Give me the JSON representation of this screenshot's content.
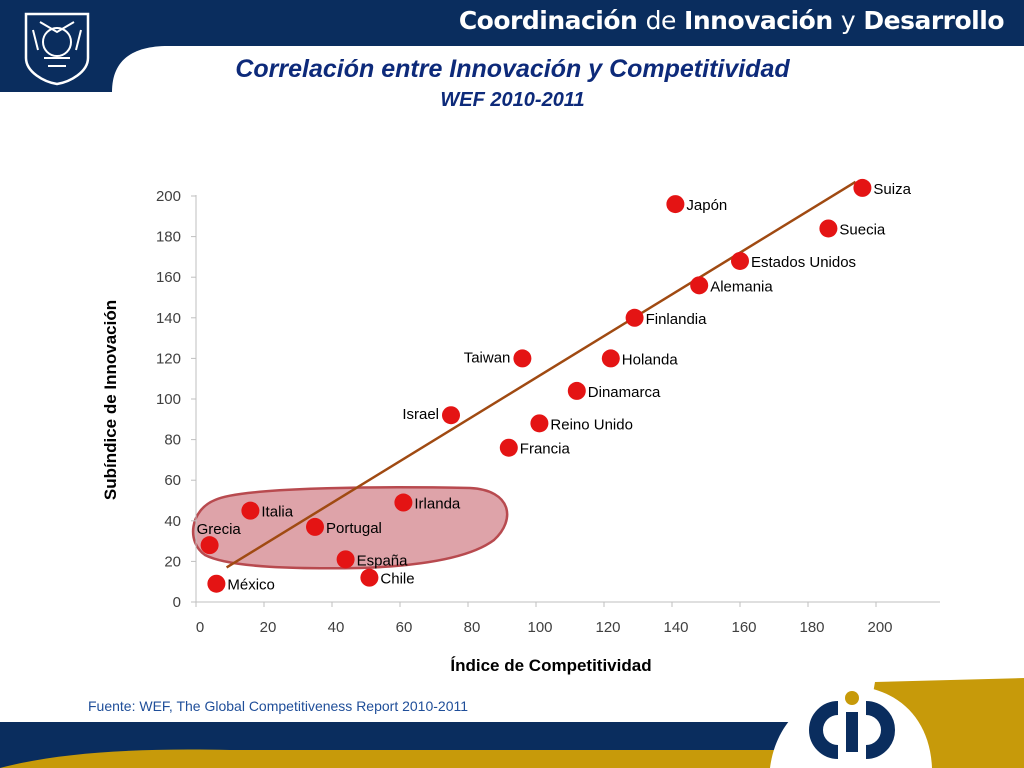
{
  "header": {
    "org_part1": "Coordinación",
    "org_part2": "de",
    "org_part3": "Innovación",
    "org_part4": "y",
    "org_part5": "Desarrollo",
    "logo_text": "cid"
  },
  "slide": {
    "title": "Correlación entre Innovación y Competitividad",
    "subtitle": "WEF 2010-2011"
  },
  "source": "Fuente: WEF, The Global Competitiveness Report 2010-2011",
  "colors": {
    "navy": "#0a2d5e",
    "gold": "#c79a0a",
    "point": "#e41414",
    "trend": "#a04a12",
    "highlight_fill": "#d8939a",
    "highlight_stroke": "#b84a4f",
    "title": "#0d2a7a"
  },
  "chart_data": {
    "type": "scatter",
    "xlabel": "Índice de Competitividad",
    "ylabel": "Subíndice de Innovación",
    "xlim": [
      0,
      200
    ],
    "ylim": [
      0,
      200
    ],
    "xticks": [
      0,
      20,
      40,
      60,
      80,
      100,
      120,
      140,
      160,
      180,
      200
    ],
    "yticks": [
      0,
      20,
      40,
      60,
      80,
      100,
      120,
      140,
      160,
      180,
      200
    ],
    "grid": false,
    "points": [
      {
        "label": "Suiza",
        "x": 196,
        "y": 204,
        "label_pos": "right"
      },
      {
        "label": "Japón",
        "x": 141,
        "y": 196,
        "label_pos": "right"
      },
      {
        "label": "Suecia",
        "x": 186,
        "y": 184,
        "label_pos": "right"
      },
      {
        "label": "Estados Unidos",
        "x": 160,
        "y": 168,
        "label_pos": "right"
      },
      {
        "label": "Alemania",
        "x": 148,
        "y": 156,
        "label_pos": "right"
      },
      {
        "label": "Finlandia",
        "x": 129,
        "y": 140,
        "label_pos": "right"
      },
      {
        "label": "Taiwan",
        "x": 96,
        "y": 120,
        "label_pos": "left"
      },
      {
        "label": "Holanda",
        "x": 122,
        "y": 120,
        "label_pos": "right"
      },
      {
        "label": "Dinamarca",
        "x": 112,
        "y": 104,
        "label_pos": "right"
      },
      {
        "label": "Israel",
        "x": 75,
        "y": 92,
        "label_pos": "left"
      },
      {
        "label": "Reino Unido",
        "x": 101,
        "y": 88,
        "label_pos": "right"
      },
      {
        "label": "Francia",
        "x": 92,
        "y": 76,
        "label_pos": "right"
      },
      {
        "label": "Irlanda",
        "x": 61,
        "y": 49,
        "label_pos": "right"
      },
      {
        "label": "Italia",
        "x": 16,
        "y": 45,
        "label_pos": "right"
      },
      {
        "label": "Portugal",
        "x": 35,
        "y": 37,
        "label_pos": "right"
      },
      {
        "label": "Grecia",
        "x": 4,
        "y": 28,
        "label_pos": "above"
      },
      {
        "label": "España",
        "x": 44,
        "y": 21,
        "label_pos": "right"
      },
      {
        "label": "Chile",
        "x": 51,
        "y": 12,
        "label_pos": "right"
      },
      {
        "label": "México",
        "x": 6,
        "y": 9,
        "label_pos": "right"
      }
    ],
    "trendline": {
      "x1": 9,
      "y1": 17,
      "x2": 194,
      "y2": 207
    }
  }
}
